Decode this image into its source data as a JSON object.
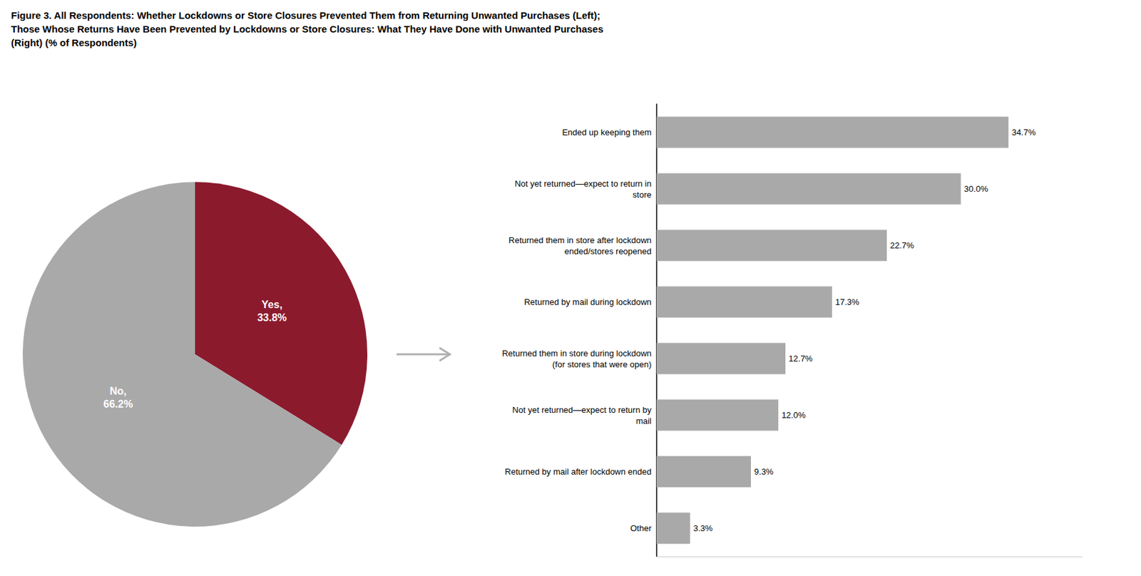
{
  "chart_data": [
    {
      "type": "pie",
      "title": "Figure 3. All Respondents: Whether Lockdowns or Store Closures Prevented Them from Returning Unwanted Purchases (Left);\nThose Whose Returns Have Been Prevented by Lockdowns or Store Closures: What They Have Done with Unwanted Purchases\n(Right) (% of Respondents)",
      "categories": [
        "Yes,\n33.8%",
        "No,\n66.2%"
      ],
      "values": [
        33.8,
        66.2
      ],
      "colors": [
        "#8B1A2D",
        "#A9A9A9"
      ]
    },
    {
      "type": "bar",
      "orientation": "horizontal",
      "categories": [
        "Ended up keeping them",
        "Not yet returned—expect to return in\nstore",
        "Returned them in store after lockdown\nended/stores reopened",
        "Returned by mail during lockdown",
        "Returned them in store during lockdown\n(for stores that were open)",
        "Not yet returned—expect to return by\nmail",
        "Returned by mail after lockdown ended",
        "Other"
      ],
      "values": [
        34.7,
        30.0,
        22.7,
        17.3,
        12.7,
        12.0,
        9.3,
        3.3
      ],
      "value_labels": [
        "34.7%",
        "30.0%",
        "22.7%",
        "17.3%",
        "12.7%",
        "12.0%",
        "9.3%",
        "3.3%"
      ],
      "data_labels": true,
      "color": "#A9A9A9",
      "xlim": [
        0,
        42
      ],
      "tick_labels": "y",
      "grid": false
    }
  ]
}
